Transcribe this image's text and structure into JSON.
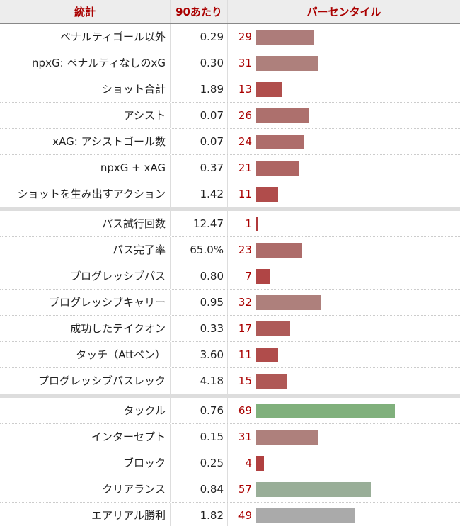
{
  "header": {
    "stat": "統計",
    "per90": "90あたり",
    "percentile": "パーセンタイル"
  },
  "groups": [
    [
      {
        "stat": "ペナルティゴール以外",
        "per90": "0.29",
        "percentile": 29,
        "color": "#ad7c7a"
      },
      {
        "stat": "npxG: ペナルティなしのxG",
        "per90": "0.30",
        "percentile": 31,
        "color": "#ae807c"
      },
      {
        "stat": "ショット合計",
        "per90": "1.89",
        "percentile": 13,
        "color": "#b04e4c"
      },
      {
        "stat": "アシスト",
        "per90": "0.07",
        "percentile": 26,
        "color": "#ad706d"
      },
      {
        "stat": "xAG: アシストゴール数",
        "per90": "0.07",
        "percentile": 24,
        "color": "#ae6d6b"
      },
      {
        "stat": "npxG + xAG",
        "per90": "0.37",
        "percentile": 21,
        "color": "#ae6563"
      },
      {
        "stat": "ショットを生み出すアクション",
        "per90": "1.42",
        "percentile": 11,
        "color": "#b04c4b"
      }
    ],
    [
      {
        "stat": "パス試行回数",
        "per90": "12.47",
        "percentile": 1,
        "color": "#b0393b"
      },
      {
        "stat": "パス完了率",
        "per90": "65.0%",
        "percentile": 23,
        "color": "#ad6c6a"
      },
      {
        "stat": "プログレッシブパス",
        "per90": "0.80",
        "percentile": 7,
        "color": "#b04545"
      },
      {
        "stat": "プログレッシブキャリー",
        "per90": "0.95",
        "percentile": 32,
        "color": "#ae807c"
      },
      {
        "stat": "成功したテイクオン",
        "per90": "0.33",
        "percentile": 17,
        "color": "#ae5a58"
      },
      {
        "stat": "タッチ（Attペン）",
        "per90": "3.60",
        "percentile": 11,
        "color": "#b04c4b"
      },
      {
        "stat": "プログレッシブパスレック",
        "per90": "4.18",
        "percentile": 15,
        "color": "#af5856"
      }
    ],
    [
      {
        "stat": "タックル",
        "per90": "0.76",
        "percentile": 69,
        "color": "#80b07c"
      },
      {
        "stat": "インターセプト",
        "per90": "0.15",
        "percentile": 31,
        "color": "#ae807c"
      },
      {
        "stat": "ブロック",
        "per90": "0.25",
        "percentile": 4,
        "color": "#b04040"
      },
      {
        "stat": "クリアランス",
        "per90": "0.84",
        "percentile": 57,
        "color": "#99ae98"
      },
      {
        "stat": "エアリアル勝利",
        "per90": "1.82",
        "percentile": 49,
        "color": "#aaaaaa"
      }
    ]
  ]
}
